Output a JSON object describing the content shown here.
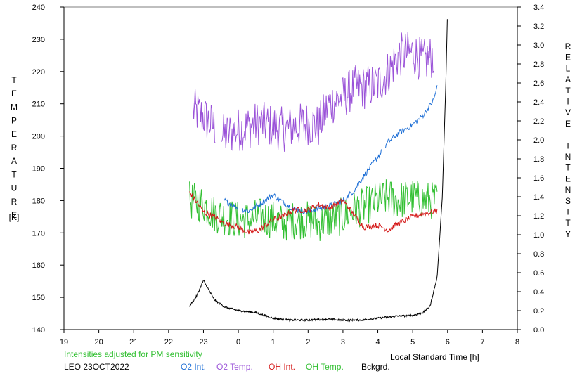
{
  "chart_data": {
    "type": "line",
    "left_axis": {
      "label": "TEMPERATURE",
      "unit": "[K]",
      "ylim": [
        140,
        240
      ],
      "ticks": [
        "140",
        "150",
        "160",
        "170",
        "180",
        "190",
        "200",
        "210",
        "220",
        "230",
        "240"
      ]
    },
    "right_axis": {
      "label": "RELATIVE INTENSITY",
      "ylim": [
        0.0,
        3.4
      ],
      "ticks": [
        "0.0",
        "0.2",
        "0.4",
        "0.6",
        "0.8",
        "1.0",
        "1.2",
        "1.4",
        "1.6",
        "1.8",
        "2.0",
        "2.2",
        "2.4",
        "2.6",
        "2.8",
        "3.0",
        "3.2",
        "3.4"
      ]
    },
    "x_axis": {
      "label": "Local Standard Time [h]",
      "ticks": [
        "19",
        "20",
        "21",
        "22",
        "23",
        "0",
        "1",
        "2",
        "3",
        "4",
        "5",
        "6",
        "7",
        "8"
      ]
    },
    "note": "Intensities adjusted for PM sensitivity",
    "site_date": "LEO 23OCT2022",
    "legend": [
      {
        "label": "O2 Int.",
        "color": "#1e6fd6"
      },
      {
        "label": "O2 Temp.",
        "color": "#9a52d8"
      },
      {
        "label": "OH Int.",
        "color": "#d41616"
      },
      {
        "label": "OH Temp.",
        "color": "#33c033"
      },
      {
        "label": "Bckgrd.",
        "color": "#000000"
      }
    ],
    "series": [
      {
        "axis": "left",
        "color": "#9a52d8",
        "x": [
          22.7,
          23.0,
          23.3,
          23.6,
          24.0,
          24.3,
          24.6,
          25.0,
          25.3,
          25.6,
          26.0,
          26.3,
          26.6,
          27.0,
          27.3,
          27.6,
          28.0,
          28.3,
          28.6,
          29.0,
          29.3,
          29.6
        ],
        "values": [
          208,
          206,
          203,
          200,
          202,
          203,
          204,
          203,
          202,
          203,
          204,
          203,
          210,
          212,
          215,
          215,
          216,
          220,
          225,
          226,
          223,
          225
        ],
        "noise": 7
      },
      {
        "axis": "left",
        "color": "#33c033",
        "x": [
          22.6,
          23.0,
          23.3,
          23.6,
          24.0,
          24.3,
          24.6,
          25.0,
          25.3,
          25.6,
          26.0,
          26.3,
          26.6,
          27.0,
          27.3,
          27.6,
          28.0,
          28.3,
          28.6,
          29.0,
          29.3,
          29.7
        ],
        "values": [
          180,
          179,
          176,
          175,
          174,
          174,
          175,
          174,
          173,
          174,
          174,
          173,
          174,
          175,
          177,
          178,
          180,
          181,
          180,
          181,
          180,
          180
        ],
        "noise": 6
      },
      {
        "axis": "right",
        "color": "#1e6fd6",
        "x": [
          23.6,
          24.0,
          24.3,
          24.6,
          25.0,
          25.3,
          25.6,
          26.0,
          26.3,
          26.6,
          27.0,
          27.3,
          27.6,
          28.0,
          28.3,
          28.6,
          29.0,
          29.3,
          29.6,
          29.7
        ],
        "values": [
          1.36,
          1.28,
          1.25,
          1.32,
          1.42,
          1.34,
          1.27,
          1.24,
          1.28,
          1.3,
          1.36,
          1.46,
          1.62,
          1.82,
          1.98,
          2.07,
          2.16,
          2.26,
          2.42,
          2.56
        ],
        "noise": 0.03
      },
      {
        "axis": "right",
        "color": "#d41616",
        "x": [
          22.6,
          23.0,
          23.3,
          23.6,
          24.0,
          24.3,
          24.6,
          25.0,
          25.3,
          25.6,
          26.0,
          26.3,
          26.6,
          27.0,
          27.3,
          27.6,
          28.0,
          28.3,
          28.6,
          29.0,
          29.3,
          29.7
        ],
        "values": [
          1.45,
          1.24,
          1.19,
          1.12,
          1.08,
          1.02,
          1.05,
          1.16,
          1.2,
          1.26,
          1.26,
          1.32,
          1.28,
          1.36,
          1.22,
          1.08,
          1.1,
          1.05,
          1.12,
          1.19,
          1.22,
          1.25
        ],
        "noise": 0.03
      },
      {
        "axis": "right",
        "color": "#000000",
        "x": [
          22.6,
          22.8,
          23.0,
          23.3,
          23.6,
          24.0,
          24.5,
          25.0,
          25.5,
          26.0,
          26.5,
          27.0,
          27.5,
          28.0,
          28.5,
          29.0,
          29.3,
          29.5,
          29.7,
          29.85,
          29.95,
          30.0
        ],
        "values": [
          0.25,
          0.35,
          0.52,
          0.32,
          0.24,
          0.2,
          0.18,
          0.12,
          0.1,
          0.1,
          0.11,
          0.1,
          0.1,
          0.12,
          0.14,
          0.15,
          0.18,
          0.25,
          0.55,
          1.4,
          2.6,
          3.4
        ],
        "noise": 0.01
      }
    ],
    "gaps": [
      {
        "series": 0,
        "between": [
          23.35,
          23.5
        ]
      },
      {
        "series": 2,
        "between": [
          24.0,
          24.1
        ]
      },
      {
        "series": 2,
        "between": [
          28.1,
          28.2
        ]
      }
    ]
  }
}
